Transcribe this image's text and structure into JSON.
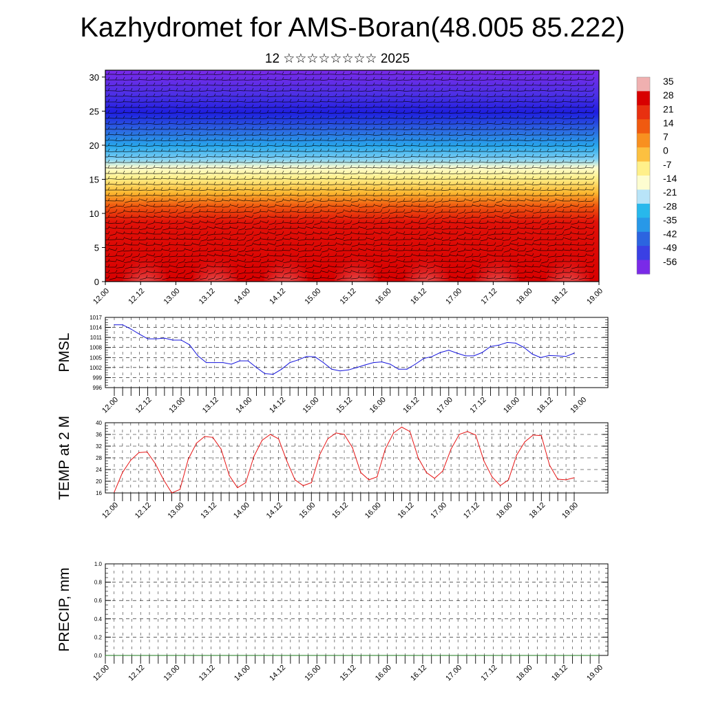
{
  "header": {
    "title": "Kazhydromet for AMS-Boran(48.005 85.222)",
    "subtitle": "12 ☆☆☆☆☆☆☆☆ 2025"
  },
  "chart_data": [
    {
      "type": "heatmap",
      "name": "temperature-height cross section with wind barbs",
      "x_ticks": [
        "12.00",
        "12.12",
        "13.00",
        "13.12",
        "14.00",
        "14.12",
        "15.00",
        "15.12",
        "16.00",
        "16.12",
        "17.00",
        "17.12",
        "18.00",
        "18.12",
        "19.00"
      ],
      "y_ticks": [
        "0",
        "5",
        "10",
        "15",
        "20",
        "25",
        "30"
      ],
      "ylim": [
        0,
        31
      ],
      "colorbar_labels": [
        "35",
        "28",
        "21",
        "14",
        "7",
        "0",
        "-7",
        "-14",
        "-21",
        "-28",
        "-35",
        "-42",
        "-49",
        "-56"
      ],
      "colorbar_colors": [
        "#f0b0b0",
        "#d80000",
        "#e83010",
        "#f05a10",
        "#f89020",
        "#fcc040",
        "#fff08a",
        "#fdfdd0",
        "#b8e4f8",
        "#28b8ec",
        "#2898e8",
        "#2c64e0",
        "#3a40e4",
        "#7a2ae8"
      ]
    },
    {
      "type": "line",
      "ylabel": "PMSL",
      "x_ticks": [
        "12.00",
        "12.12",
        "13.00",
        "13.12",
        "14.00",
        "14.12",
        "15.00",
        "15.12",
        "16.00",
        "16.12",
        "17.00",
        "17.12",
        "18.00",
        "18.12",
        "19.00"
      ],
      "y_ticks": [
        "996",
        "999",
        "1002",
        "1005",
        "1008",
        "1011",
        "1014",
        "1017"
      ],
      "ylim": [
        996,
        1017
      ],
      "color": "#1414dc",
      "values": [
        1014.8,
        1014.8,
        1013.5,
        1012,
        1010.6,
        1010.6,
        1010.8,
        1010.2,
        1010.2,
        1008.8,
        1005.5,
        1003.5,
        1003.5,
        1003.5,
        1003,
        1004,
        1004,
        1002,
        1000.2,
        1000,
        1001.5,
        1003.5,
        1004.3,
        1005.3,
        1005.2,
        1003.5,
        1001.5,
        1001,
        1001.3,
        1002,
        1002.8,
        1003.5,
        1003.7,
        1003,
        1001.5,
        1001.5,
        1003,
        1004.7,
        1005.3,
        1006.5,
        1007.2,
        1006.3,
        1005.5,
        1005.5,
        1006.5,
        1008.3,
        1008.7,
        1009.5,
        1009.3,
        1008,
        1006,
        1005,
        1005.6,
        1005.5,
        1005.3,
        1006.3
      ]
    },
    {
      "type": "line",
      "ylabel": "TEMP at 2 M",
      "x_ticks": [
        "12.00",
        "12.12",
        "13.00",
        "13.12",
        "14.00",
        "14.12",
        "15.00",
        "15.12",
        "16.00",
        "16.12",
        "17.00",
        "17.12",
        "18.00",
        "18.12",
        "19.00"
      ],
      "y_ticks": [
        "16",
        "20",
        "24",
        "28",
        "32",
        "36",
        "40"
      ],
      "ylim": [
        16,
        40
      ],
      "color": "#e61414",
      "values": [
        16.3,
        23,
        27.2,
        29.8,
        30,
        26,
        20.5,
        16,
        17.2,
        27.5,
        33,
        35.3,
        35,
        31,
        22,
        17.8,
        19.5,
        28.5,
        34,
        36,
        34.5,
        27,
        20.5,
        18.5,
        19.5,
        29,
        34.5,
        36.5,
        36,
        31.5,
        23,
        20.5,
        21.5,
        31,
        36.5,
        38.5,
        37,
        28,
        23,
        21,
        23.5,
        31,
        36,
        37,
        35.8,
        27,
        21.5,
        18.5,
        20.5,
        29,
        33.5,
        35.8,
        35.6,
        25.5,
        20.7,
        20.5,
        21.2
      ]
    },
    {
      "type": "line",
      "ylabel": "PRECIP, mm",
      "x_ticks": [
        "12.00",
        "12.12",
        "13.00",
        "13.12",
        "14.00",
        "14.12",
        "15.00",
        "15.12",
        "16.00",
        "16.12",
        "17.00",
        "17.12",
        "18.00",
        "18.12",
        "19.00"
      ],
      "y_ticks": [
        "0.0",
        "0.2",
        "0.4",
        "0.6",
        "0.8",
        "1.0"
      ],
      "ylim": [
        0,
        1
      ],
      "color": "#1a7a1a",
      "values": [
        0,
        0,
        0,
        0,
        0,
        0,
        0,
        0,
        0,
        0,
        0,
        0,
        0,
        0,
        0,
        0,
        0,
        0,
        0,
        0,
        0,
        0,
        0,
        0,
        0,
        0,
        0,
        0,
        0,
        0,
        0,
        0,
        0,
        0,
        0,
        0,
        0,
        0,
        0,
        0,
        0,
        0,
        0,
        0,
        0,
        0,
        0,
        0,
        0,
        0,
        0,
        0,
        0,
        0,
        0,
        0,
        0
      ]
    }
  ]
}
